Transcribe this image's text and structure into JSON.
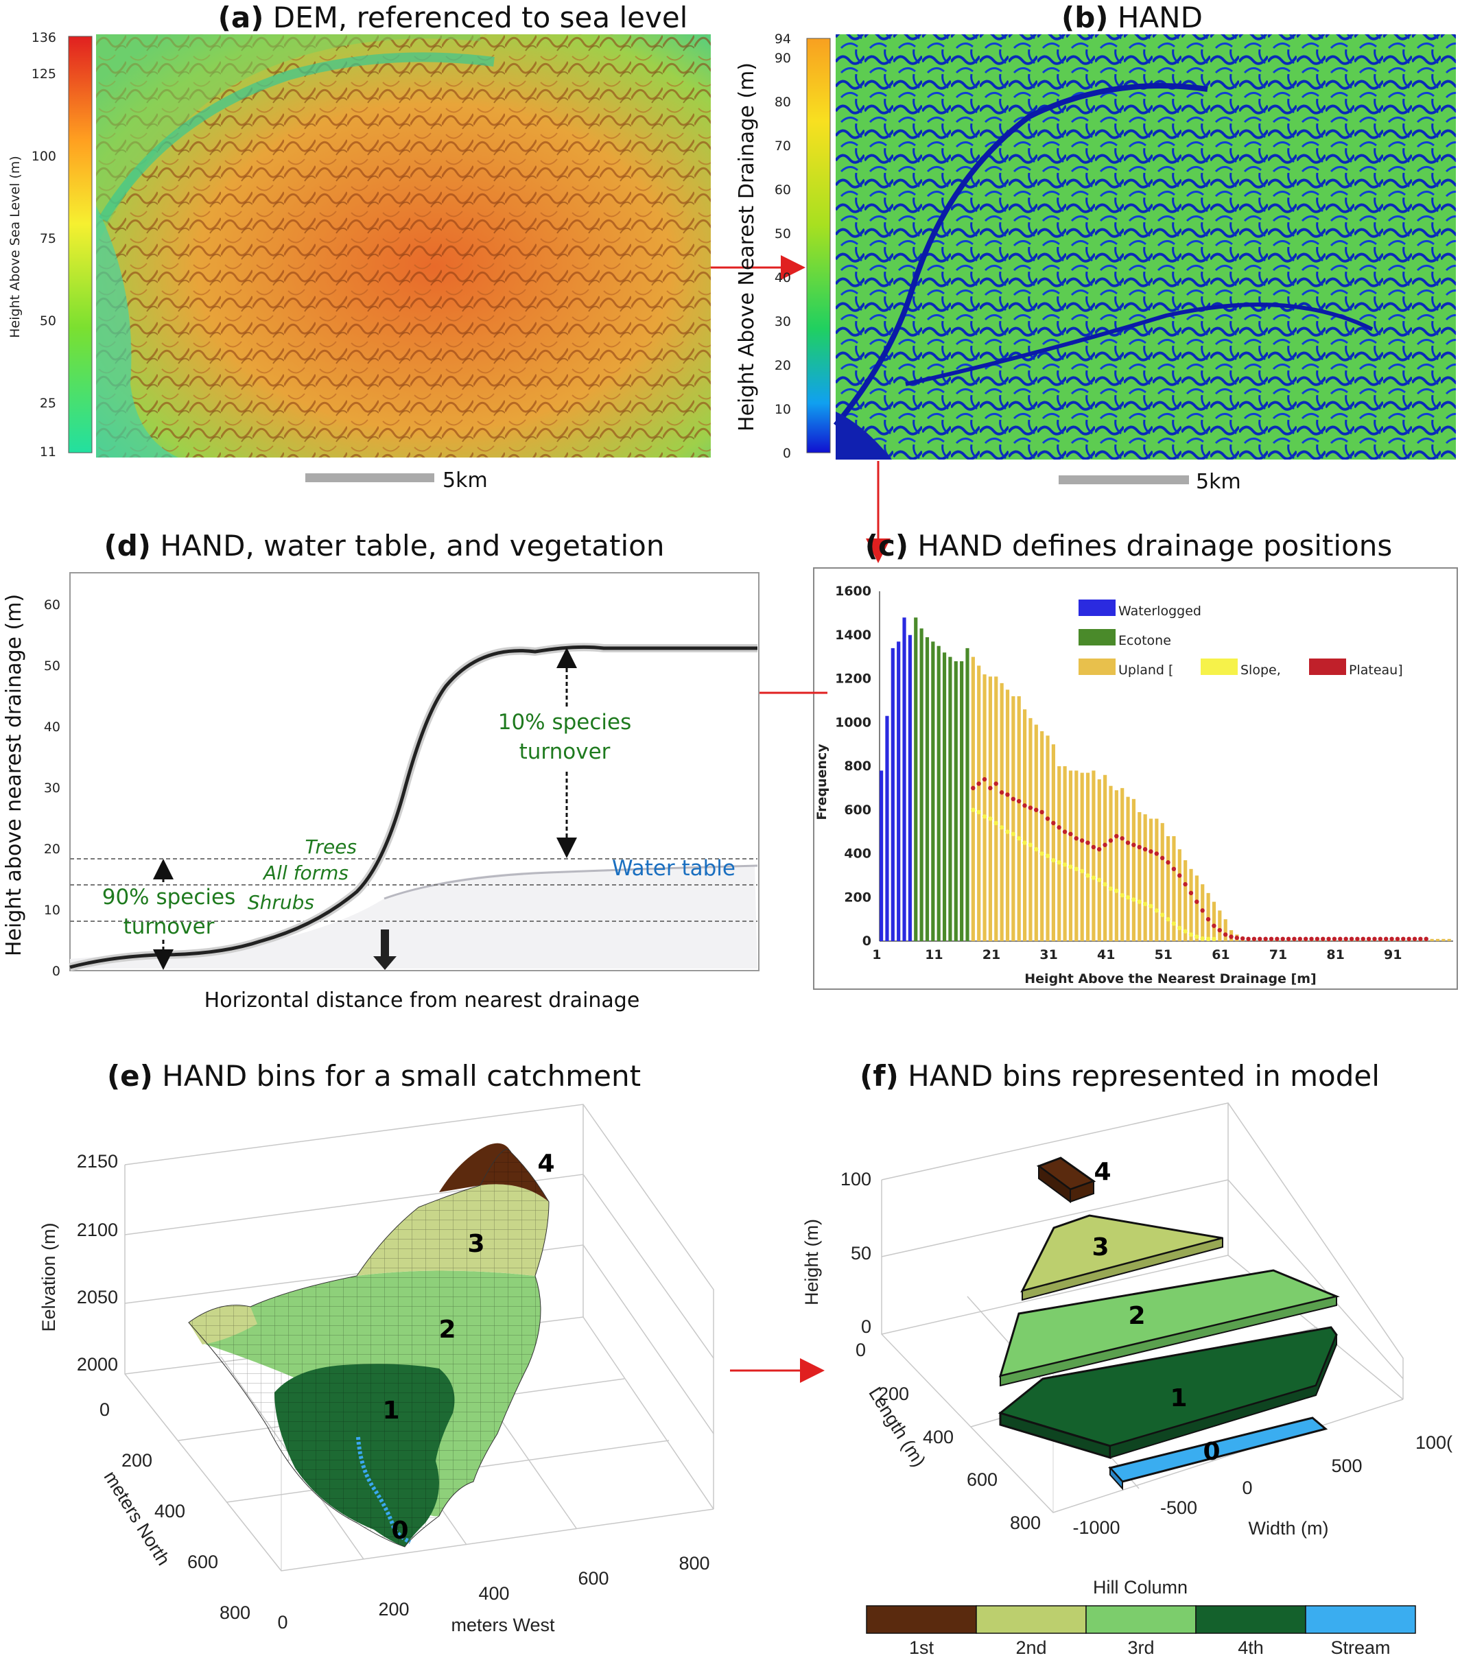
{
  "colors": {
    "upland": "#e8c04c",
    "ecotone": "#4a8a2a",
    "waterlogged": "#2a2ae0",
    "plateau": "#c0202a",
    "slope": "#f6f24a",
    "arrow": "#e02020"
  },
  "panel_a": {
    "tag": "(a)",
    "title": " DEM, referenced to sea level",
    "ylabel": "Height Above Sea Level (m)",
    "ticks": [
      "136",
      "125",
      "100",
      "75",
      "50",
      "25",
      "11"
    ],
    "scale": "5km"
  },
  "panel_b": {
    "tag": "(b)",
    "title": " HAND",
    "ylabel": "Height  Above Nearest Drainage (m)",
    "ticks": [
      "94",
      "90",
      "80",
      "70",
      "60",
      "50",
      "40",
      "30",
      "20",
      "10",
      "0"
    ],
    "scale": "5km"
  },
  "panel_c": {
    "tag": "(c)",
    "title": " HAND defines drainage positions"
  },
  "panel_d": {
    "tag": "(d)",
    "title": " HAND, water table, and vegetation",
    "ylabel": "Height above nearest drainage (m)",
    "xlabel": "Horizontal distance from nearest drainage",
    "yticks": [
      "0",
      "10",
      "20",
      "30",
      "40",
      "50",
      "60"
    ],
    "ann_trees": "Trees",
    "ann_allforms": "All forms",
    "ann_shrubs": "Shrubs",
    "ann_water": "Water table",
    "ann_90_l1": "90% species",
    "ann_90_l2": "turnover",
    "ann_10_l1": "10% species",
    "ann_10_l2": "turnover"
  },
  "panel_e": {
    "tag": "(e)",
    "title": " HAND bins for a small catchment",
    "zlabel": "Eelvation (m)",
    "zticks": [
      "2150",
      "2100",
      "2050",
      "2000"
    ],
    "ylabel": "meters North",
    "yticks": [
      "0",
      "200",
      "400",
      "600",
      "800"
    ],
    "xlabel": "meters West",
    "xticks": [
      "0",
      "200",
      "400",
      "600",
      "800"
    ],
    "bins": [
      "0",
      "1",
      "2",
      "3",
      "4"
    ]
  },
  "panel_f": {
    "tag": "(f)",
    "title": " HAND bins represented in model",
    "zlabel": "Height (m)",
    "zticks": [
      "100",
      "50",
      "0"
    ],
    "ylabel": "Length (m)",
    "yticks": [
      "0",
      "200",
      "400",
      "600",
      "800"
    ],
    "xlabel": "Width (m)",
    "xticks": [
      "-1000",
      "-500",
      "0",
      "500",
      "100("
    ],
    "bins": [
      "0",
      "1",
      "2",
      "3",
      "4"
    ],
    "cbar_title": "Hill Column",
    "cbar_labels": [
      "1st",
      "2nd",
      "3rd",
      "4th",
      "Stream"
    ],
    "cbar_colors": [
      "#5a2a0e",
      "#bccf6e",
      "#7ccd6c",
      "#14612c",
      "#3aadf0"
    ]
  },
  "chart_data": {
    "type": "bar",
    "title": "HAND defines drainage positions",
    "xlabel": "Height Above the Nearest Drainage [m]",
    "ylabel": "Frequency",
    "ylim": [
      0,
      1600
    ],
    "xlim": [
      1,
      101
    ],
    "xticks": [
      "1",
      "11",
      "21",
      "31",
      "41",
      "51",
      "61",
      "71",
      "81",
      "91"
    ],
    "yticks": [
      "0",
      "200",
      "400",
      "600",
      "800",
      "1000",
      "1200",
      "1400",
      "1600"
    ],
    "legend": [
      {
        "label": "Waterlogged",
        "color": "#2a2ae0"
      },
      {
        "label": "Ecotone",
        "color": "#4a8a2a"
      },
      {
        "label": "Upland [",
        "color": "#e8c04c"
      },
      {
        "label": "Slope,",
        "color": "#f6f24a"
      },
      {
        "label": "Plateau]",
        "color": "#c0202a"
      }
    ],
    "series": [
      {
        "name": "Frequency",
        "values": [
          780,
          1030,
          1340,
          1370,
          1480,
          1400,
          1480,
          1430,
          1390,
          1370,
          1350,
          1320,
          1300,
          1280,
          1280,
          1340,
          1300,
          1260,
          1220,
          1210,
          1210,
          1180,
          1150,
          1120,
          1120,
          1060,
          1020,
          990,
          960,
          940,
          900,
          800,
          800,
          780,
          780,
          770,
          770,
          780,
          740,
          760,
          710,
          690,
          700,
          660,
          650,
          590,
          580,
          560,
          560,
          540,
          480,
          480,
          420,
          370,
          330,
          300,
          260,
          220,
          180,
          140,
          100,
          50,
          30,
          20,
          15,
          12,
          10,
          10,
          10,
          10,
          10,
          10,
          10,
          10,
          10,
          10,
          10,
          10,
          10,
          10,
          10,
          10,
          10,
          10,
          10,
          10,
          10,
          10,
          10,
          10,
          10,
          10,
          10,
          10,
          10,
          10,
          10,
          10,
          10,
          10
        ]
      },
      {
        "name": "Plateau",
        "values": [
          700,
          720,
          740,
          700,
          720,
          680,
          670,
          650,
          640,
          620,
          610,
          600,
          590,
          560,
          540,
          520,
          500,
          490,
          470,
          460,
          450,
          430,
          420,
          440,
          460,
          480,
          470,
          450,
          440,
          430,
          420,
          410,
          400,
          380,
          360,
          330,
          300,
          260,
          220,
          180,
          140,
          100,
          70,
          50,
          30,
          20,
          15,
          12,
          10,
          10,
          10,
          10,
          10,
          10,
          10,
          10,
          10,
          10,
          10,
          10,
          10,
          10,
          10,
          10,
          10,
          10,
          10,
          10,
          10,
          10,
          10,
          10,
          10,
          10,
          10,
          10,
          10,
          10,
          10,
          10
        ]
      },
      {
        "name": "Slope",
        "values": [
          600,
          590,
          570,
          560,
          540,
          520,
          500,
          490,
          470,
          450,
          440,
          420,
          400,
          390,
          370,
          360,
          350,
          340,
          330,
          320,
          300,
          290,
          280,
          260,
          240,
          230,
          210,
          200,
          190,
          180,
          170,
          160,
          140,
          120,
          100,
          80,
          60,
          45,
          30,
          20,
          12,
          10,
          10
        ]
      }
    ],
    "category_boundaries": {
      "waterlogged_end": 6,
      "ecotone_end": 16
    }
  }
}
